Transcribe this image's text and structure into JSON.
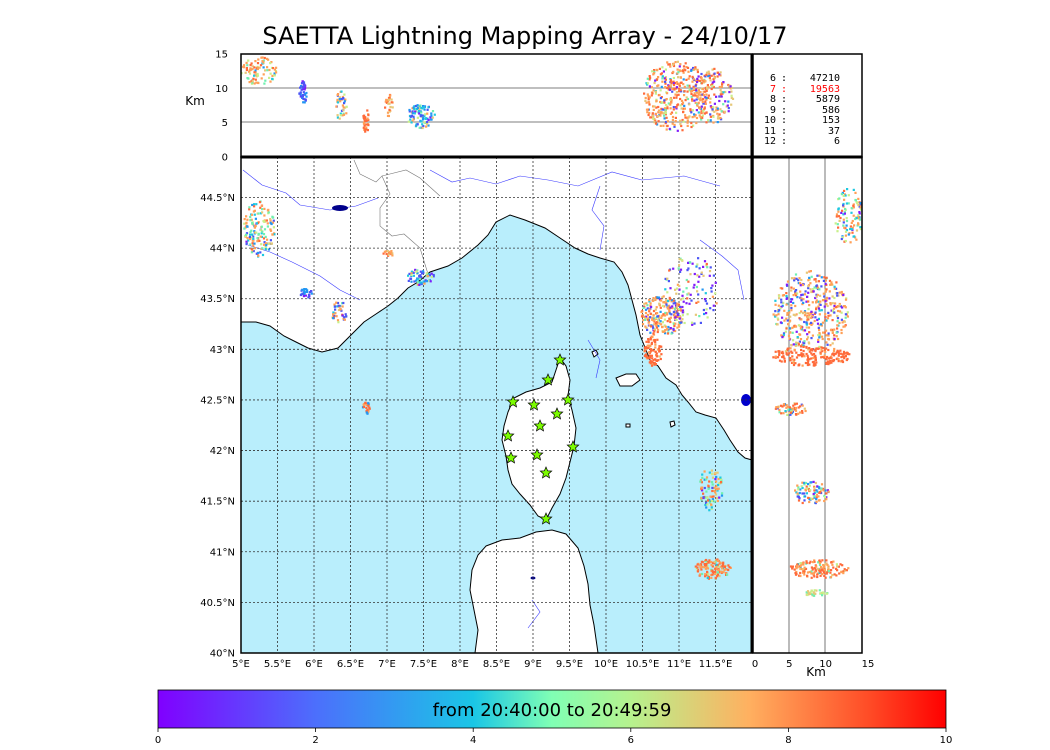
{
  "title": "SAETTA Lightning Mapping Array - 24/10/17",
  "altitude_panel": {
    "unit_label": "Km",
    "y_ticks": [
      "15",
      "10",
      "5",
      "0"
    ]
  },
  "side_panel": {
    "unit_label": "Km",
    "x_ticks": [
      "0",
      "5",
      "10",
      "15"
    ]
  },
  "station_counts": [
    {
      "stations": "6",
      "count": "47210",
      "highlight": false
    },
    {
      "stations": "7",
      "count": "19563",
      "highlight": true
    },
    {
      "stations": "8",
      "count": "5879",
      "highlight": false
    },
    {
      "stations": "9",
      "count": "586",
      "highlight": false
    },
    {
      "stations": "10",
      "count": "153",
      "highlight": false
    },
    {
      "stations": "11",
      "count": "37",
      "highlight": false
    },
    {
      "stations": "12",
      "count": "6",
      "highlight": false
    }
  ],
  "map": {
    "lon_ticks": [
      "5°E",
      "5.5°E",
      "6°E",
      "6.5°E",
      "7°E",
      "7.5°E",
      "8°E",
      "8.5°E",
      "9°E",
      "9.5°E",
      "10°E",
      "10.5°E",
      "11°E",
      "11.5°E"
    ],
    "lat_ticks": [
      "44.5°N",
      "44°N",
      "43.5°N",
      "43°N",
      "42.5°N",
      "42°N",
      "41.5°N",
      "41°N",
      "40.5°N",
      "40°N"
    ],
    "sea_color": "#b9eefc",
    "land_color": "#ffffff",
    "station_count": 13,
    "station_color": "#7cfc00"
  },
  "colorbar": {
    "label": "from 20:40:00 to 20:49:59",
    "ticks": [
      "0",
      "2",
      "4",
      "6",
      "8",
      "10"
    ],
    "colormap": "rainbow"
  }
}
